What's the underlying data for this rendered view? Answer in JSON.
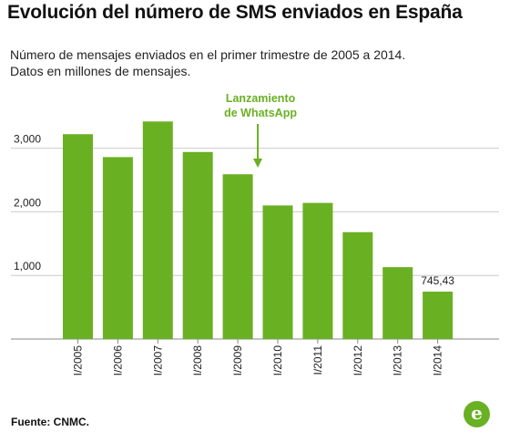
{
  "header": {
    "title": "Evolución del número de SMS enviados en España",
    "subtitle_line1": "Número de mensajes enviados en el primer trimestre de 2005 a 2014.",
    "subtitle_line2": "Datos en millones de mensajes."
  },
  "footer": {
    "source": "Fuente: CNMC.",
    "logo_letter": "e"
  },
  "colors": {
    "bar": "#6ab023",
    "annotation": "#6ab023",
    "grid": "#cccccc",
    "text": "#111111"
  },
  "chart_data": {
    "type": "bar",
    "title": "Evolución del número de SMS enviados en España",
    "xlabel": "",
    "ylabel": "",
    "categories": [
      "I/2005",
      "I/2006",
      "I/2007",
      "I/2008",
      "I/2009",
      "I/2010",
      "I/2011",
      "I/2012",
      "I/2013",
      "I/2014"
    ],
    "values": [
      3220,
      2860,
      3420,
      2940,
      2590,
      2100,
      2140,
      1680,
      1130,
      745.43
    ],
    "ylim": [
      0,
      3500
    ],
    "yticks": [
      1000,
      2000,
      3000
    ],
    "ytick_labels": [
      "1,000",
      "2,000",
      "3,000"
    ],
    "grid": true,
    "data_labels": [
      {
        "category": "I/2014",
        "text": "745,43"
      }
    ],
    "annotations": [
      {
        "text_line1": "Lanzamiento",
        "text_line2": "de WhatsApp",
        "between": [
          "I/2009",
          "I/2010"
        ]
      }
    ]
  }
}
